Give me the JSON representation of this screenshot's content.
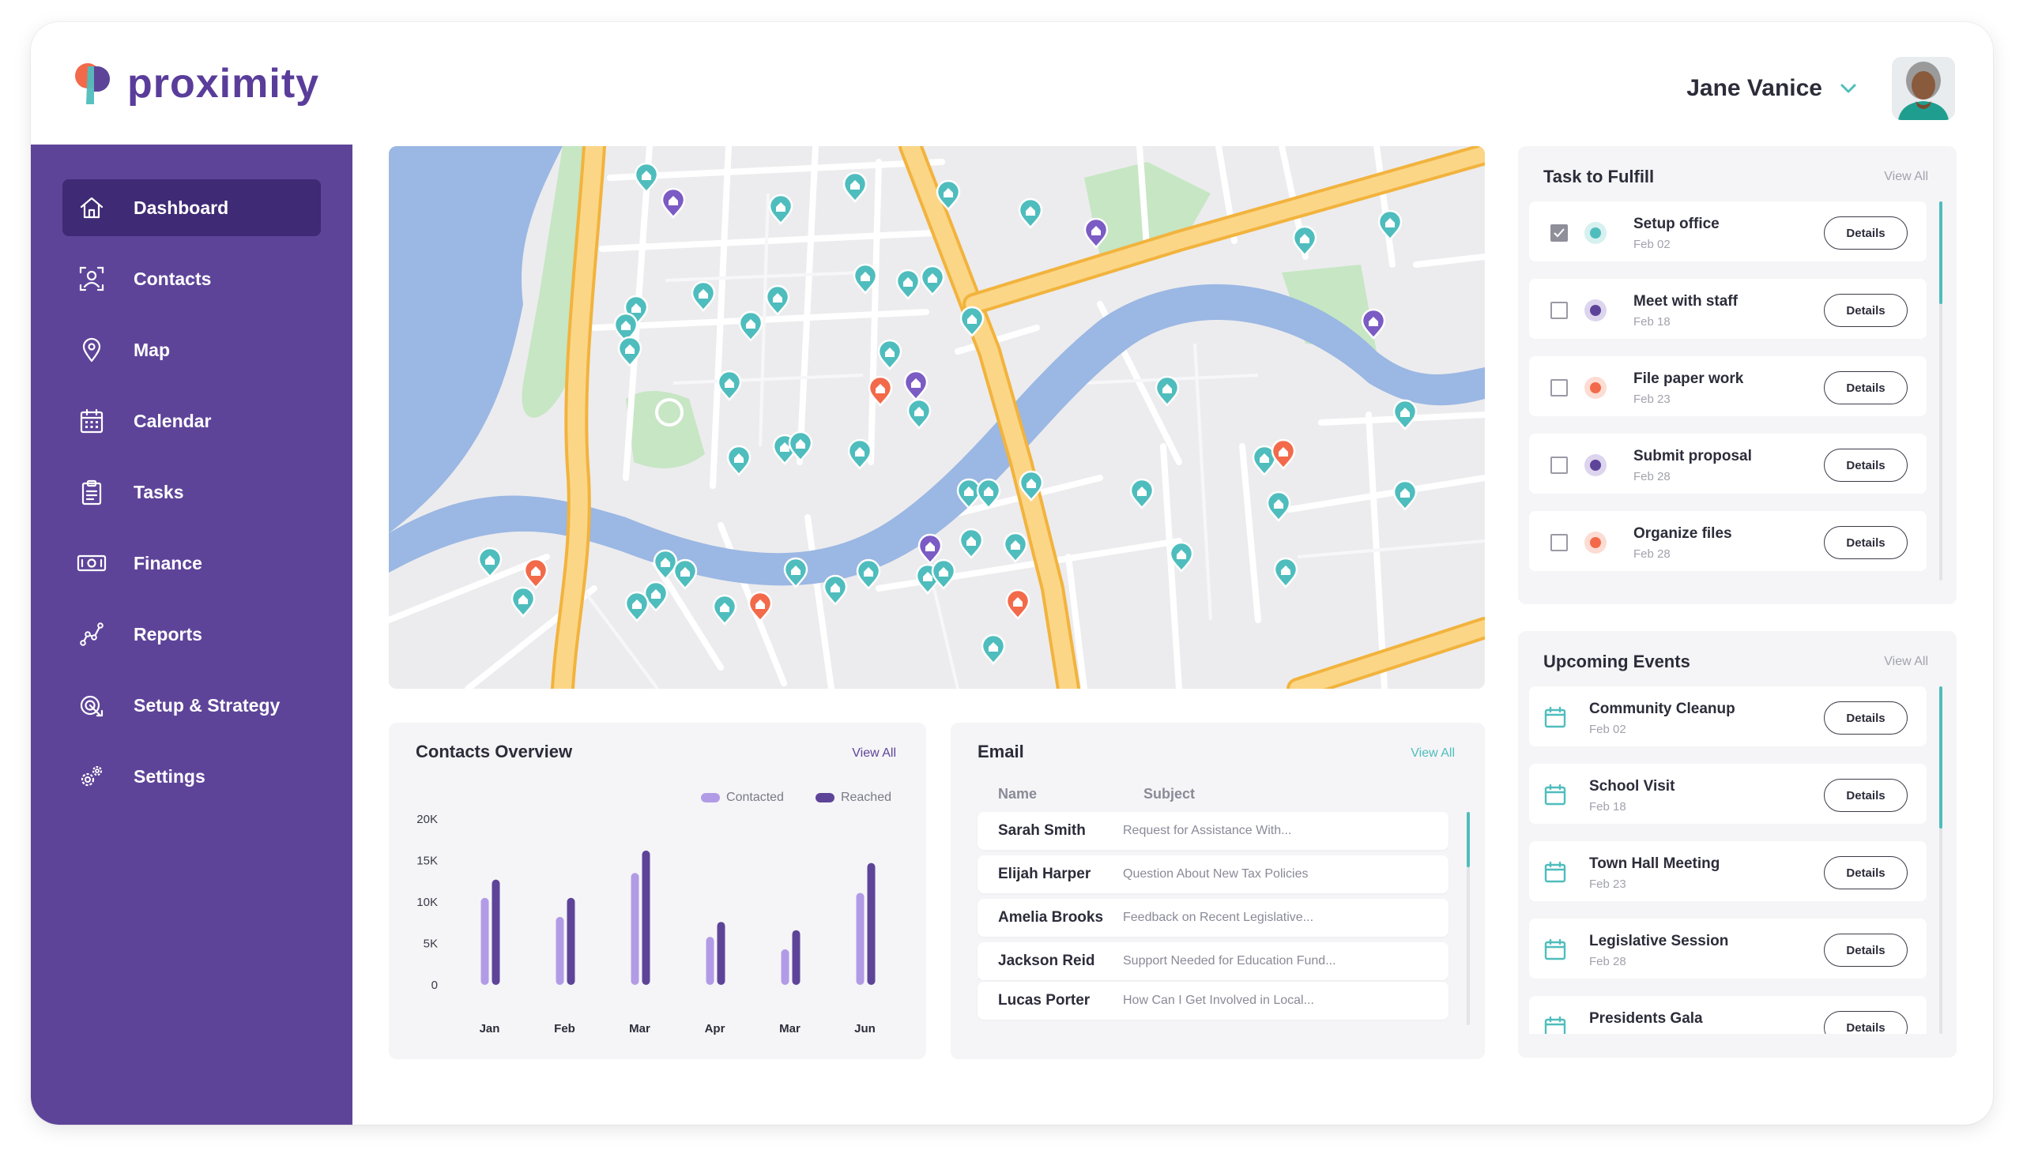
{
  "app": {
    "name": "proximity",
    "colors": {
      "primary": "#5e4499",
      "primary_dark": "#3f2a75",
      "teal": "#4fbdbd",
      "orange": "#f26a4a",
      "purple_light": "#b29be6"
    }
  },
  "user": {
    "name": "Jane Vanice",
    "avatar_icon": "user-avatar-photo"
  },
  "sidebar": {
    "items": [
      {
        "label": "Dashboard",
        "icon": "home-icon",
        "active": true
      },
      {
        "label": "Contacts",
        "icon": "contacts-icon"
      },
      {
        "label": "Map",
        "icon": "map-pin-icon"
      },
      {
        "label": "Calendar",
        "icon": "calendar-icon"
      },
      {
        "label": "Tasks",
        "icon": "clipboard-icon"
      },
      {
        "label": "Finance",
        "icon": "money-icon"
      },
      {
        "label": "Reports",
        "icon": "chart-line-icon"
      },
      {
        "label": "Setup & Strategy",
        "icon": "strategy-icon"
      },
      {
        "label": "Settings",
        "icon": "gears-icon"
      }
    ]
  },
  "contacts_overview": {
    "title": "Contacts Overview",
    "view_all": "View All",
    "legend": [
      "Contacted",
      "Reached"
    ]
  },
  "chart_data": {
    "type": "bar",
    "categories": [
      "Jan",
      "Feb",
      "Mar",
      "Apr",
      "Mar",
      "Jun"
    ],
    "series": [
      {
        "name": "Contacted",
        "values": [
          10500,
          8200,
          13500,
          5800,
          4300,
          11100
        ]
      },
      {
        "name": "Reached",
        "values": [
          12700,
          10500,
          16200,
          7600,
          6600,
          14700
        ]
      }
    ],
    "yticks": [
      "0",
      "5K",
      "10K",
      "15K",
      "20K"
    ],
    "ylim": [
      0,
      20000
    ],
    "colors": [
      "#b29be6",
      "#5e4499"
    ]
  },
  "email": {
    "title": "Email",
    "view_all": "View All",
    "columns": [
      "Name",
      "Subject"
    ],
    "rows": [
      {
        "name": "Sarah Smith",
        "subject": "Request for Assistance With..."
      },
      {
        "name": "Elijah Harper",
        "subject": "Question About New Tax Policies"
      },
      {
        "name": "Amelia Brooks",
        "subject": "Feedback on Recent Legislative..."
      },
      {
        "name": "Jackson Reid",
        "subject": "Support Needed for Education Fund..."
      },
      {
        "name": "Lucas Porter",
        "subject": "How Can I Get Involved in Local..."
      }
    ]
  },
  "tasks": {
    "title": "Task to Fulfill",
    "view_all": "View All",
    "details_label": "Details",
    "items": [
      {
        "title": "Setup office",
        "date": "Feb 02",
        "checked": true,
        "color": "#4fbdbd"
      },
      {
        "title": "Meet with staff",
        "date": "Feb 18",
        "checked": false,
        "color": "#5e4499"
      },
      {
        "title": "File paper work",
        "date": "Feb 23",
        "checked": false,
        "color": "#f26a4a"
      },
      {
        "title": "Submit proposal",
        "date": "Feb 28",
        "checked": false,
        "color": "#5e4499"
      },
      {
        "title": "Organize files",
        "date": "Feb 28",
        "checked": false,
        "color": "#f26a4a"
      }
    ]
  },
  "events": {
    "title": "Upcoming Events",
    "view_all": "View All",
    "details_label": "Details",
    "items": [
      {
        "title": "Community Cleanup",
        "date": "Feb 02"
      },
      {
        "title": "School Visit",
        "date": "Feb 18"
      },
      {
        "title": "Town Hall Meeting",
        "date": "Feb 23"
      },
      {
        "title": "Legislative Session",
        "date": "Feb 28"
      },
      {
        "title": "Presidents Gala",
        "date": ""
      }
    ]
  }
}
